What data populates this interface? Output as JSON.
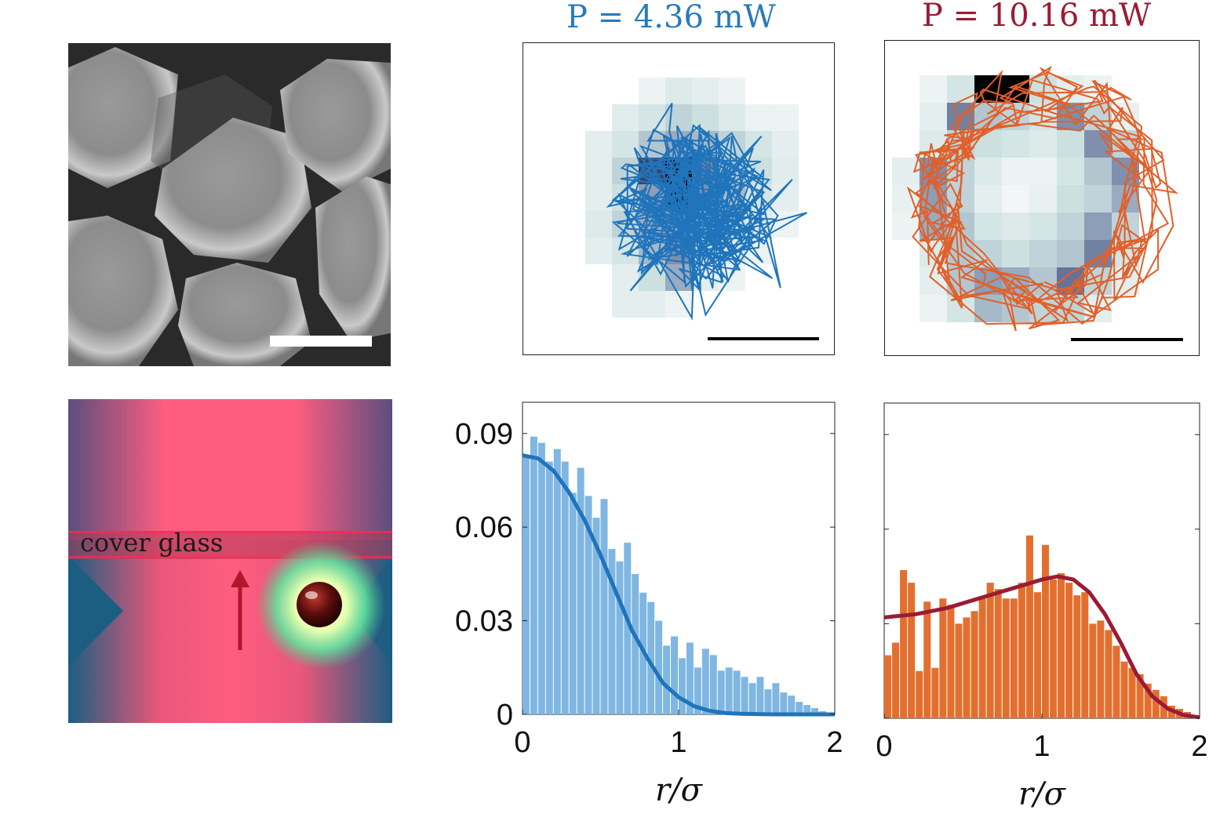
{
  "titles": {
    "left": "P = 4.36 mW",
    "right": "P = 10.16 mW",
    "left_color": "#2a7ab9",
    "right_color": "#9b1b33"
  },
  "schematic": {
    "label": "cover glass"
  },
  "colors": {
    "blue_line": "#1f74bb",
    "blue_bar": "#7fb6e2",
    "orange_line": "#e0602a",
    "orange_bar": "#e36f2f",
    "red_fit": "#9b1b33",
    "heat_dark": "#000000",
    "heat_light": "#e6efef"
  },
  "chart_data": [
    {
      "type": "bar",
      "panel": "lower-middle",
      "xlabel": "r/σ",
      "ylabel": "",
      "xlim": [
        0,
        2
      ],
      "ylim": [
        0,
        0.1
      ],
      "xticks": [
        "0",
        "1",
        "2"
      ],
      "yticks": [
        "0",
        "0.03",
        "0.06",
        "0.09"
      ],
      "bin_width": 0.05,
      "values": [
        0.083,
        0.089,
        0.087,
        0.081,
        0.085,
        0.081,
        0.071,
        0.079,
        0.07,
        0.063,
        0.069,
        0.053,
        0.049,
        0.055,
        0.045,
        0.039,
        0.036,
        0.03,
        0.022,
        0.025,
        0.018,
        0.023,
        0.015,
        0.021,
        0.019,
        0.014,
        0.015,
        0.014,
        0.012,
        0.01,
        0.012,
        0.008,
        0.01,
        0.007,
        0.006,
        0.004,
        0.003,
        0.002,
        0.001,
        0.0005
      ],
      "fit": {
        "x": [
          0,
          0.1,
          0.2,
          0.3,
          0.4,
          0.5,
          0.6,
          0.7,
          0.8,
          0.9,
          1.0,
          1.1,
          1.2,
          1.3,
          1.4,
          1.5,
          1.6,
          1.8,
          2.0
        ],
        "y": [
          0.083,
          0.082,
          0.078,
          0.071,
          0.062,
          0.051,
          0.039,
          0.027,
          0.018,
          0.01,
          0.0055,
          0.0026,
          0.0011,
          0.0004,
          0.0002,
          0.0001,
          0.0,
          0.0,
          0.0
        ]
      }
    },
    {
      "type": "bar",
      "panel": "lower-right",
      "xlabel": "r/σ",
      "ylabel": "",
      "xlim": [
        0,
        2
      ],
      "ylim": [
        0,
        0.1
      ],
      "xticks": [
        "0",
        "1",
        "2"
      ],
      "yticks": [],
      "bin_width": 0.05,
      "values": [
        0.02,
        0.024,
        0.047,
        0.043,
        0.015,
        0.037,
        0.016,
        0.038,
        0.036,
        0.03,
        0.032,
        0.034,
        0.038,
        0.043,
        0.041,
        0.038,
        0.038,
        0.043,
        0.058,
        0.04,
        0.055,
        0.044,
        0.046,
        0.043,
        0.039,
        0.04,
        0.03,
        0.031,
        0.028,
        0.023,
        0.018,
        0.016,
        0.014,
        0.011,
        0.009,
        0.007,
        0.004,
        0.003,
        0.002,
        0.001
      ],
      "fit": {
        "x": [
          0,
          0.2,
          0.4,
          0.6,
          0.8,
          1.0,
          1.1,
          1.2,
          1.3,
          1.4,
          1.5,
          1.6,
          1.7,
          1.8,
          1.9,
          2.0
        ],
        "y": [
          0.032,
          0.033,
          0.035,
          0.038,
          0.041,
          0.044,
          0.045,
          0.044,
          0.04,
          0.033,
          0.024,
          0.014,
          0.007,
          0.003,
          0.001,
          0.0003
        ]
      }
    }
  ]
}
